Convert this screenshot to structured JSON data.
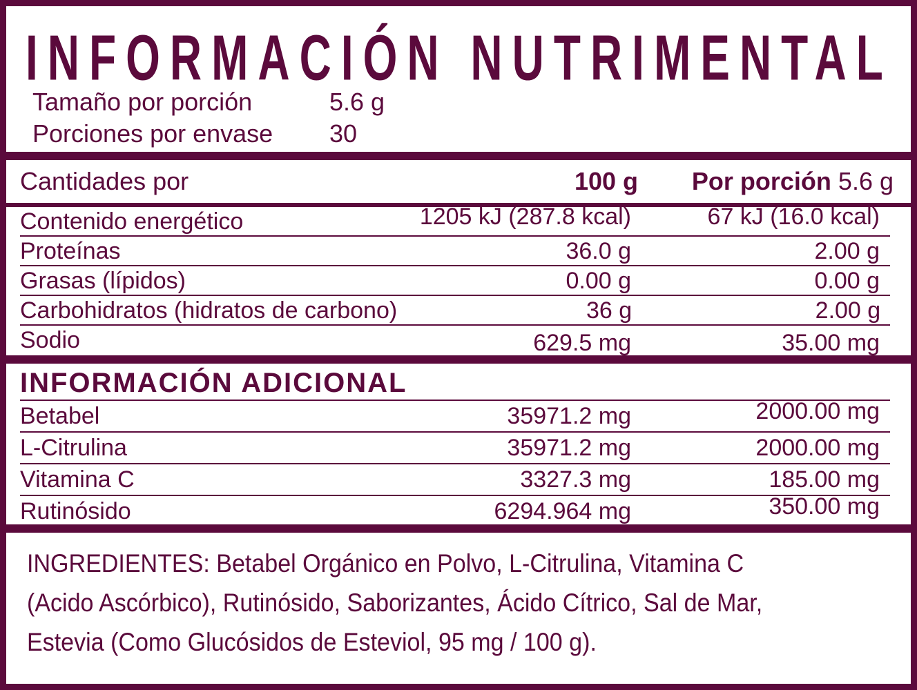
{
  "colors": {
    "brand_maroon": "#5b0a3c",
    "background": "#ffffff"
  },
  "header": {
    "title": "INFORMACIÓN NUTRIMENTAL",
    "serving_size_label": "Tamaño por porción",
    "serving_size_value": "5.6 g",
    "servings_per_container_label": "Porciones por envase",
    "servings_per_container_value": "30"
  },
  "nutrition_table": {
    "amounts_per_label": "Cantidades por",
    "col_100g_header": "100 g",
    "col_portion_header": "Por porción",
    "col_portion_size": "5.6 g",
    "rows": [
      {
        "label": "Contenido energético",
        "per_100g": "1205 kJ (287.8 kcal)",
        "per_portion": "67 kJ (16.0 kcal)"
      },
      {
        "label": "Proteínas",
        "per_100g": "36.0 g",
        "per_portion": "2.00 g"
      },
      {
        "label": "Grasas (lípidos)",
        "per_100g": "0.00 g",
        "per_portion": "0.00 g"
      },
      {
        "label": "Carbohidratos (hidratos de carbono)",
        "per_100g": "36 g",
        "per_portion": "2.00 g"
      },
      {
        "label": "Sodio",
        "per_100g": "629.5 mg",
        "per_portion": "35.00 mg"
      }
    ]
  },
  "additional_info": {
    "title": "INFORMACIÓN ADICIONAL",
    "rows": [
      {
        "label": "Betabel",
        "per_100g": "35971.2 mg",
        "per_portion": "2000.00 mg"
      },
      {
        "label": "L-Citrulina",
        "per_100g": "35971.2 mg",
        "per_portion": "2000.00 mg"
      },
      {
        "label": "Vitamina C",
        "per_100g": "3327.3 mg",
        "per_portion": "185.00 mg"
      },
      {
        "label": "Rutinósido",
        "per_100g": "6294.964 mg",
        "per_portion": "350.00 mg"
      }
    ]
  },
  "ingredients": {
    "lines": [
      "INGREDIENTES: Betabel Orgánico en Polvo, L-Citrulina, Vitamina C",
      "(Acido Ascórbico), Rutinósido, Saborizantes, Ácido Cítrico, Sal de Mar,",
      "Estevia (Como Glucósidos de Esteviol, 95 mg / 100 g)."
    ]
  }
}
